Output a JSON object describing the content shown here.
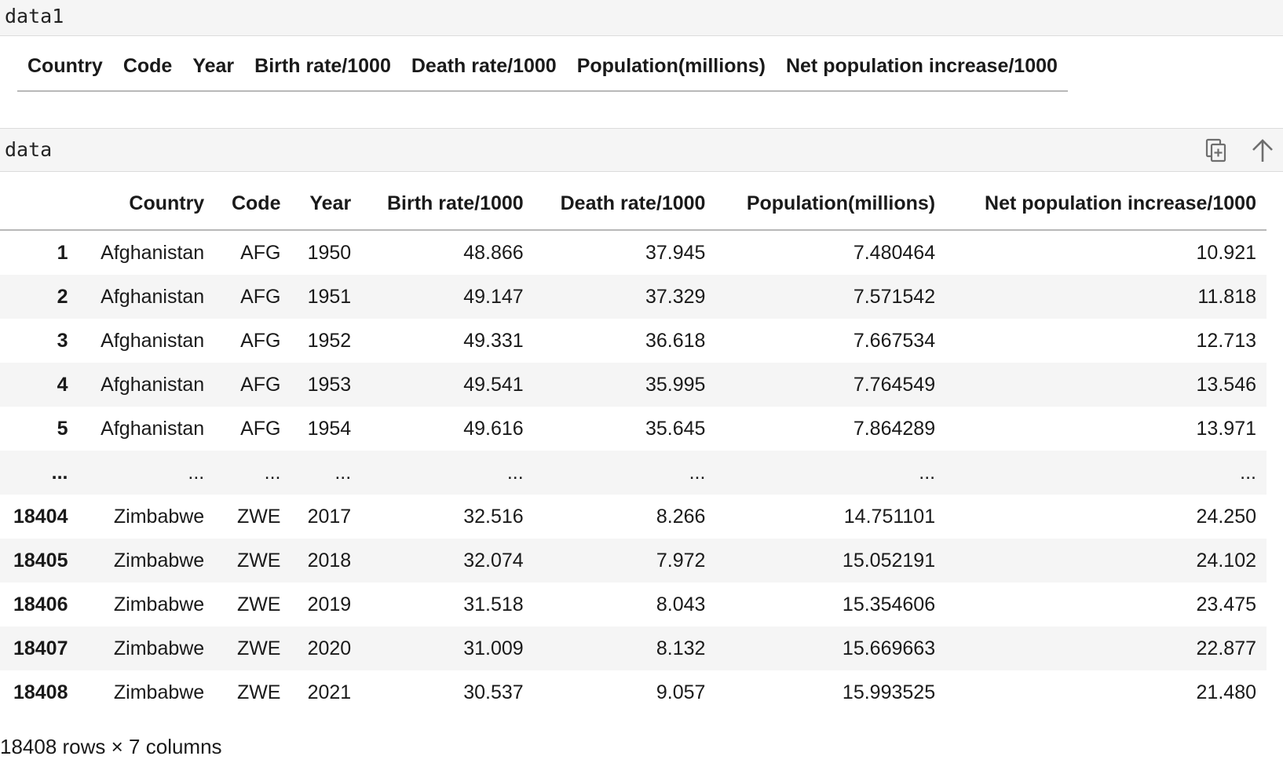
{
  "outputs": [
    {
      "name": "data1",
      "columns": [
        "Country",
        "Code",
        "Year",
        "Birth rate/1000",
        "Death rate/1000",
        "Population(millions)",
        "Net population increase/1000"
      ]
    },
    {
      "name": "data",
      "toolbar": {
        "copy_icon": "copy-icon",
        "scroll_up_icon": "arrow-up-icon"
      },
      "columns": [
        "",
        "Country",
        "Code",
        "Year",
        "Birth rate/1000",
        "Death rate/1000",
        "Population(millions)",
        "Net population increase/1000"
      ],
      "rows": [
        [
          "1",
          "Afghanistan",
          "AFG",
          "1950",
          "48.866",
          "37.945",
          "7.480464",
          "10.921"
        ],
        [
          "2",
          "Afghanistan",
          "AFG",
          "1951",
          "49.147",
          "37.329",
          "7.571542",
          "11.818"
        ],
        [
          "3",
          "Afghanistan",
          "AFG",
          "1952",
          "49.331",
          "36.618",
          "7.667534",
          "12.713"
        ],
        [
          "4",
          "Afghanistan",
          "AFG",
          "1953",
          "49.541",
          "35.995",
          "7.764549",
          "13.546"
        ],
        [
          "5",
          "Afghanistan",
          "AFG",
          "1954",
          "49.616",
          "35.645",
          "7.864289",
          "13.971"
        ],
        [
          "...",
          "...",
          "...",
          "...",
          "...",
          "...",
          "...",
          "..."
        ],
        [
          "18404",
          "Zimbabwe",
          "ZWE",
          "2017",
          "32.516",
          "8.266",
          "14.751101",
          "24.250"
        ],
        [
          "18405",
          "Zimbabwe",
          "ZWE",
          "2018",
          "32.074",
          "7.972",
          "15.052191",
          "24.102"
        ],
        [
          "18406",
          "Zimbabwe",
          "ZWE",
          "2019",
          "31.518",
          "8.043",
          "15.354606",
          "23.475"
        ],
        [
          "18407",
          "Zimbabwe",
          "ZWE",
          "2020",
          "31.009",
          "8.132",
          "15.669663",
          "22.877"
        ],
        [
          "18408",
          "Zimbabwe",
          "ZWE",
          "2021",
          "30.537",
          "9.057",
          "15.993525",
          "21.480"
        ]
      ],
      "shape_note": "18408 rows × 7 columns"
    }
  ]
}
